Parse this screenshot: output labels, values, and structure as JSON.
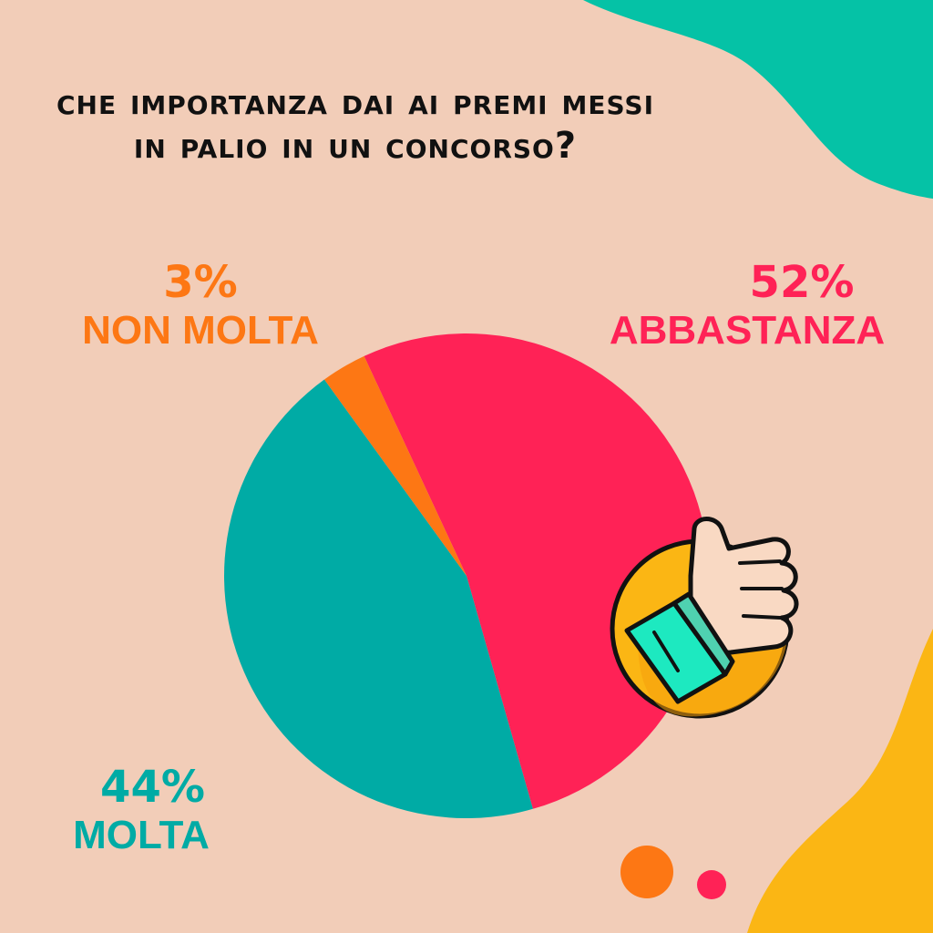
{
  "colors": {
    "background": "#f2cdb8",
    "teal_blob": "#05c2a6",
    "yellow_blob": "#fbb614",
    "title": "#111111"
  },
  "chart_data": {
    "type": "pie",
    "title": "Che importanza dai ai premi messi in palio in un concorso?",
    "slices": [
      {
        "label": "ABBASTANZA",
        "value": 52,
        "display": "52%",
        "color": "#ff2256"
      },
      {
        "label": "MOLTA",
        "value": 44,
        "display": "44%",
        "color": "#00aba5"
      },
      {
        "label": "NON MOLTA",
        "value": 3,
        "display": "3%",
        "color": "#fd7714"
      }
    ]
  },
  "decorations": {
    "icon": "thumbs-up-icon",
    "dots": [
      "#fd7714",
      "#ff2256"
    ]
  }
}
